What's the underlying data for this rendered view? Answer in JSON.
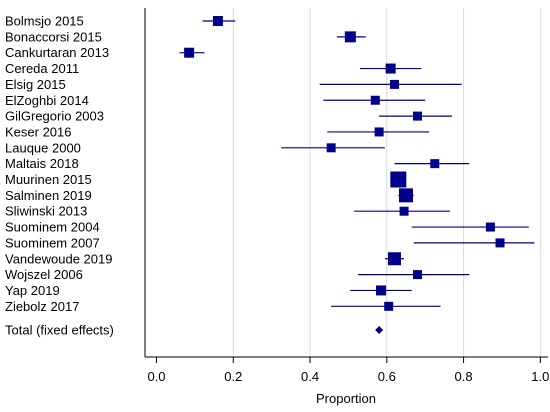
{
  "chart_data": {
    "type": "forest",
    "xlabel": "Proportion",
    "xlim": [
      -0.03,
      1.02
    ],
    "xticks": [
      "0.0",
      "0.2",
      "0.4",
      "0.6",
      "0.8",
      "1.0"
    ],
    "tick_values": [
      0.0,
      0.2,
      0.4,
      0.6,
      0.8,
      1.0
    ],
    "grid": true,
    "marker_color": "#00008b",
    "studies": [
      {
        "label": "Bolmsjo 2015",
        "estimate": 0.16,
        "ci_low": 0.12,
        "ci_high": 0.205,
        "weight": 5.0
      },
      {
        "label": "Bonaccorsi 2015",
        "estimate": 0.505,
        "ci_low": 0.47,
        "ci_high": 0.545,
        "weight": 5.5
      },
      {
        "label": "Cankurtaran 2013",
        "estimate": 0.085,
        "ci_low": 0.06,
        "ci_high": 0.125,
        "weight": 5.0
      },
      {
        "label": "Cereda 2011",
        "estimate": 0.61,
        "ci_low": 0.53,
        "ci_high": 0.69,
        "weight": 5.0
      },
      {
        "label": "Elsig 2015",
        "estimate": 0.62,
        "ci_low": 0.425,
        "ci_high": 0.795,
        "weight": 4.5
      },
      {
        "label": "ElZoghbi 2014",
        "estimate": 0.57,
        "ci_low": 0.435,
        "ci_high": 0.7,
        "weight": 4.5
      },
      {
        "label": "GilGregorio 2003",
        "estimate": 0.68,
        "ci_low": 0.58,
        "ci_high": 0.77,
        "weight": 4.5
      },
      {
        "label": "Keser 2016",
        "estimate": 0.58,
        "ci_low": 0.445,
        "ci_high": 0.71,
        "weight": 4.5
      },
      {
        "label": "Lauque 2000",
        "estimate": 0.455,
        "ci_low": 0.325,
        "ci_high": 0.595,
        "weight": 4.5
      },
      {
        "label": "Maltais 2018",
        "estimate": 0.725,
        "ci_low": 0.62,
        "ci_high": 0.815,
        "weight": 4.5
      },
      {
        "label": "Muurinen 2015",
        "estimate": 0.63,
        "ci_low": 0.61,
        "ci_high": 0.65,
        "weight": 8.0
      },
      {
        "label": "Salminen 2019",
        "estimate": 0.65,
        "ci_low": 0.63,
        "ci_high": 0.67,
        "weight": 7.0
      },
      {
        "label": "Sliwinski 2013",
        "estimate": 0.645,
        "ci_low": 0.515,
        "ci_high": 0.765,
        "weight": 4.5
      },
      {
        "label": "Suominem 2004",
        "estimate": 0.87,
        "ci_low": 0.665,
        "ci_high": 0.97,
        "weight": 4.5
      },
      {
        "label": "Suominem 2007",
        "estimate": 0.895,
        "ci_low": 0.67,
        "ci_high": 0.985,
        "weight": 4.5
      },
      {
        "label": "Vandewoude 2019",
        "estimate": 0.62,
        "ci_low": 0.595,
        "ci_high": 0.645,
        "weight": 6.5
      },
      {
        "label": "Wojszel 2006",
        "estimate": 0.68,
        "ci_low": 0.525,
        "ci_high": 0.815,
        "weight": 4.5
      },
      {
        "label": "Yap 2019",
        "estimate": 0.585,
        "ci_low": 0.505,
        "ci_high": 0.665,
        "weight": 5.0
      },
      {
        "label": "Ziebolz 2017",
        "estimate": 0.605,
        "ci_low": 0.455,
        "ci_high": 0.74,
        "weight": 4.5
      }
    ],
    "total": {
      "label": "Total (fixed effects)",
      "estimate": 0.58
    }
  }
}
